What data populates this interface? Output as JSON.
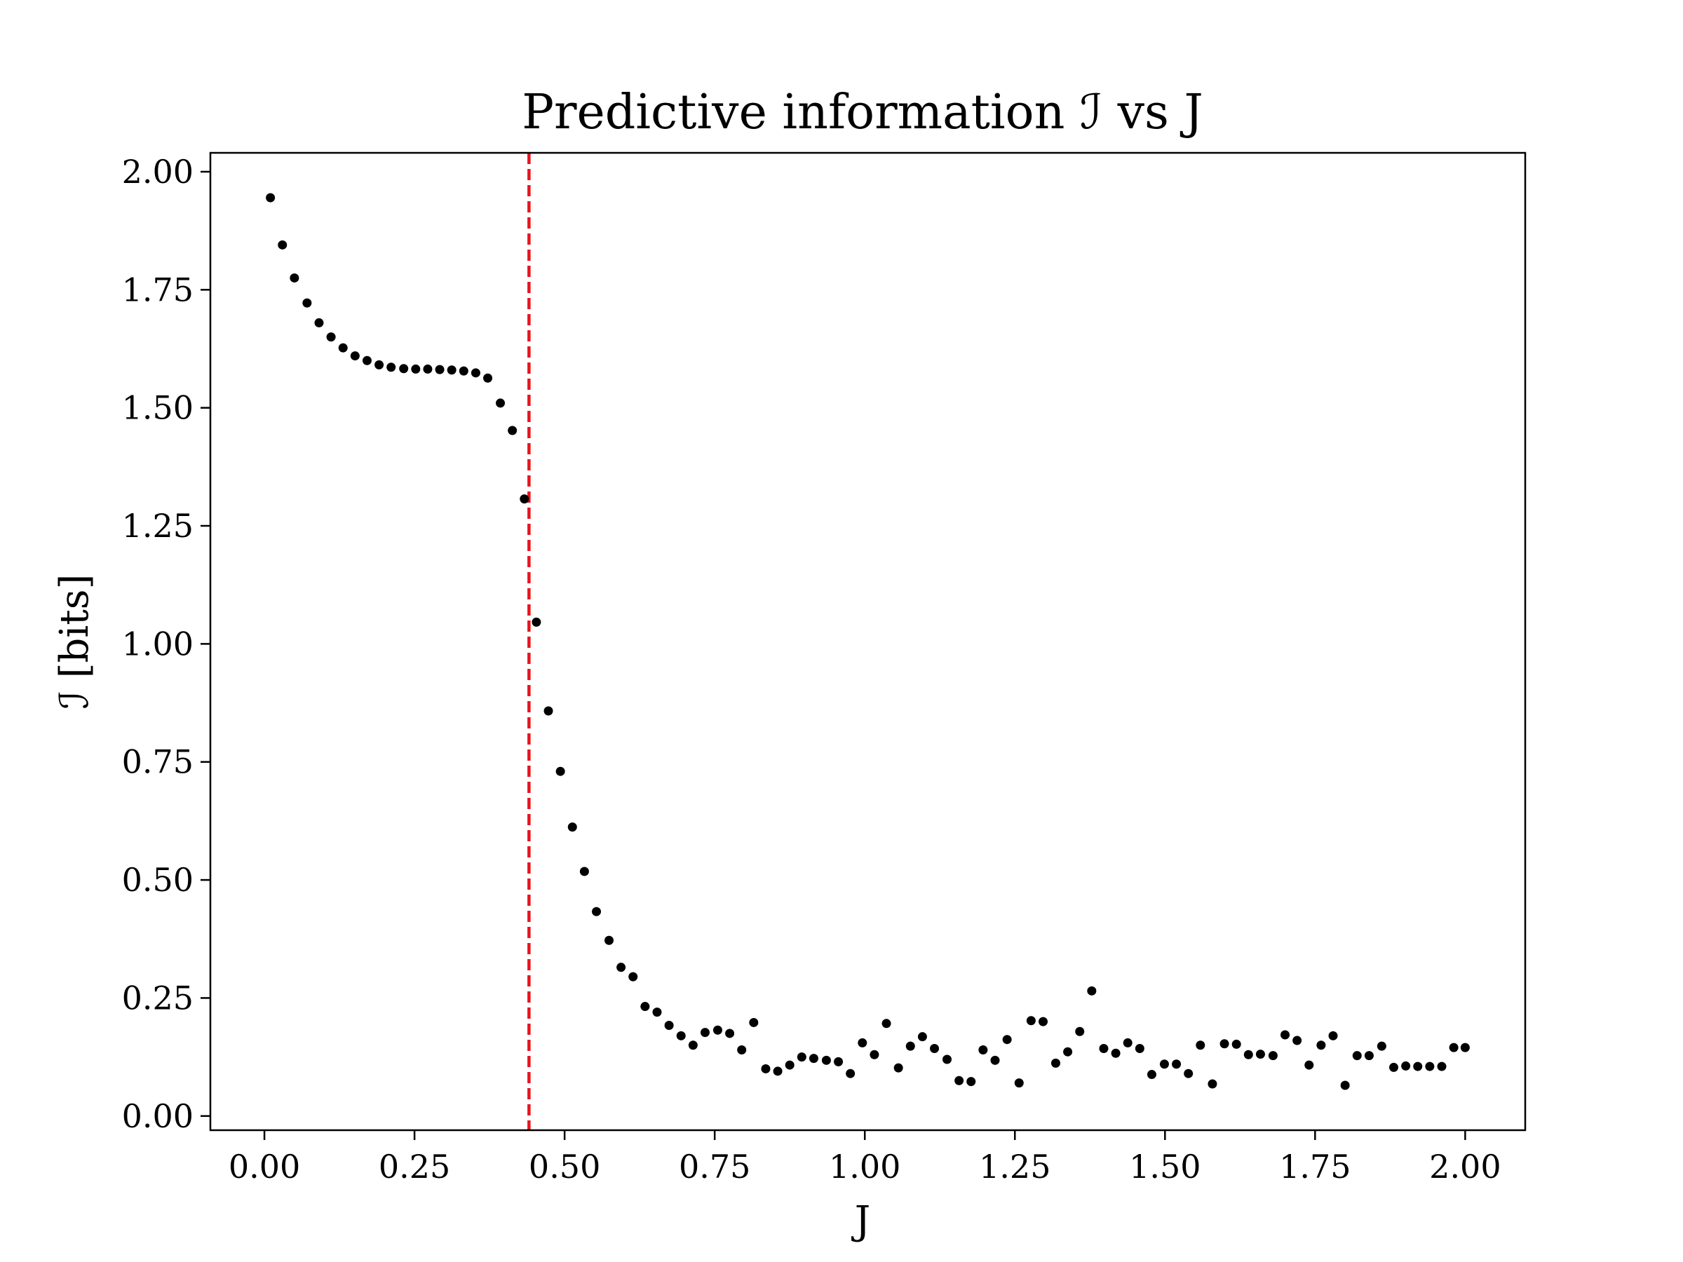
{
  "chart_data": {
    "type": "scatter",
    "title": "Predictive information ℐ vs J",
    "xlabel": "J",
    "ylabel": "ℐ [bits]",
    "xlim": [
      -0.09,
      2.1
    ],
    "ylim": [
      -0.03,
      2.04
    ],
    "xticks": [
      0.0,
      0.25,
      0.5,
      0.75,
      1.0,
      1.25,
      1.5,
      1.75,
      2.0
    ],
    "xtick_labels": [
      "0.00",
      "0.25",
      "0.50",
      "0.75",
      "1.00",
      "1.25",
      "1.50",
      "1.75",
      "2.00"
    ],
    "yticks": [
      0.0,
      0.25,
      0.5,
      0.75,
      1.0,
      1.25,
      1.5,
      1.75,
      2.0
    ],
    "ytick_labels": [
      "0.00",
      "0.25",
      "0.50",
      "0.75",
      "1.00",
      "1.25",
      "1.50",
      "1.75",
      "2.00"
    ],
    "grid": false,
    "marker_color": "#000000",
    "critical_line": {
      "x": 0.4407,
      "color": "#e8141c",
      "style": "dashed"
    },
    "points": [
      [
        0.01,
        1.945
      ],
      [
        0.03,
        1.845
      ],
      [
        0.05,
        1.775
      ],
      [
        0.071,
        1.722
      ],
      [
        0.091,
        1.68
      ],
      [
        0.111,
        1.65
      ],
      [
        0.131,
        1.627
      ],
      [
        0.151,
        1.61
      ],
      [
        0.171,
        1.6
      ],
      [
        0.191,
        1.591
      ],
      [
        0.211,
        1.586
      ],
      [
        0.232,
        1.583
      ],
      [
        0.252,
        1.582
      ],
      [
        0.272,
        1.582
      ],
      [
        0.292,
        1.581
      ],
      [
        0.312,
        1.58
      ],
      [
        0.332,
        1.578
      ],
      [
        0.352,
        1.574
      ],
      [
        0.372,
        1.563
      ],
      [
        0.393,
        1.51
      ],
      [
        0.413,
        1.452
      ],
      [
        0.433,
        1.307
      ],
      [
        0.453,
        1.046
      ],
      [
        0.473,
        0.858
      ],
      [
        0.493,
        0.73
      ],
      [
        0.513,
        0.612
      ],
      [
        0.533,
        0.518
      ],
      [
        0.553,
        0.433
      ],
      [
        0.574,
        0.372
      ],
      [
        0.594,
        0.315
      ],
      [
        0.614,
        0.295
      ],
      [
        0.634,
        0.232
      ],
      [
        0.654,
        0.22
      ],
      [
        0.674,
        0.192
      ],
      [
        0.694,
        0.17
      ],
      [
        0.714,
        0.15
      ],
      [
        0.734,
        0.177
      ],
      [
        0.755,
        0.182
      ],
      [
        0.775,
        0.175
      ],
      [
        0.795,
        0.14
      ],
      [
        0.815,
        0.198
      ],
      [
        0.835,
        0.1
      ],
      [
        0.855,
        0.095
      ],
      [
        0.875,
        0.108
      ],
      [
        0.895,
        0.125
      ],
      [
        0.915,
        0.122
      ],
      [
        0.936,
        0.118
      ],
      [
        0.956,
        0.115
      ],
      [
        0.976,
        0.09
      ],
      [
        0.996,
        0.155
      ],
      [
        1.016,
        0.13
      ],
      [
        1.036,
        0.196
      ],
      [
        1.056,
        0.102
      ],
      [
        1.076,
        0.148
      ],
      [
        1.096,
        0.168
      ],
      [
        1.116,
        0.143
      ],
      [
        1.137,
        0.12
      ],
      [
        1.157,
        0.075
      ],
      [
        1.177,
        0.073
      ],
      [
        1.197,
        0.14
      ],
      [
        1.217,
        0.118
      ],
      [
        1.237,
        0.162
      ],
      [
        1.257,
        0.07
      ],
      [
        1.277,
        0.202
      ],
      [
        1.297,
        0.2
      ],
      [
        1.318,
        0.112
      ],
      [
        1.338,
        0.136
      ],
      [
        1.358,
        0.179
      ],
      [
        1.378,
        0.265
      ],
      [
        1.398,
        0.143
      ],
      [
        1.418,
        0.133
      ],
      [
        1.438,
        0.155
      ],
      [
        1.458,
        0.143
      ],
      [
        1.478,
        0.088
      ],
      [
        1.499,
        0.11
      ],
      [
        1.519,
        0.11
      ],
      [
        1.539,
        0.09
      ],
      [
        1.559,
        0.15
      ],
      [
        1.579,
        0.068
      ],
      [
        1.599,
        0.153
      ],
      [
        1.619,
        0.152
      ],
      [
        1.639,
        0.13
      ],
      [
        1.659,
        0.131
      ],
      [
        1.68,
        0.128
      ],
      [
        1.7,
        0.172
      ],
      [
        1.72,
        0.16
      ],
      [
        1.74,
        0.108
      ],
      [
        1.76,
        0.15
      ],
      [
        1.78,
        0.17
      ],
      [
        1.8,
        0.065
      ],
      [
        1.82,
        0.128
      ],
      [
        1.84,
        0.128
      ],
      [
        1.861,
        0.148
      ],
      [
        1.881,
        0.103
      ],
      [
        1.901,
        0.106
      ],
      [
        1.921,
        0.105
      ],
      [
        1.941,
        0.105
      ],
      [
        1.961,
        0.105
      ],
      [
        1.981,
        0.145
      ],
      [
        2.0,
        0.145
      ]
    ]
  }
}
